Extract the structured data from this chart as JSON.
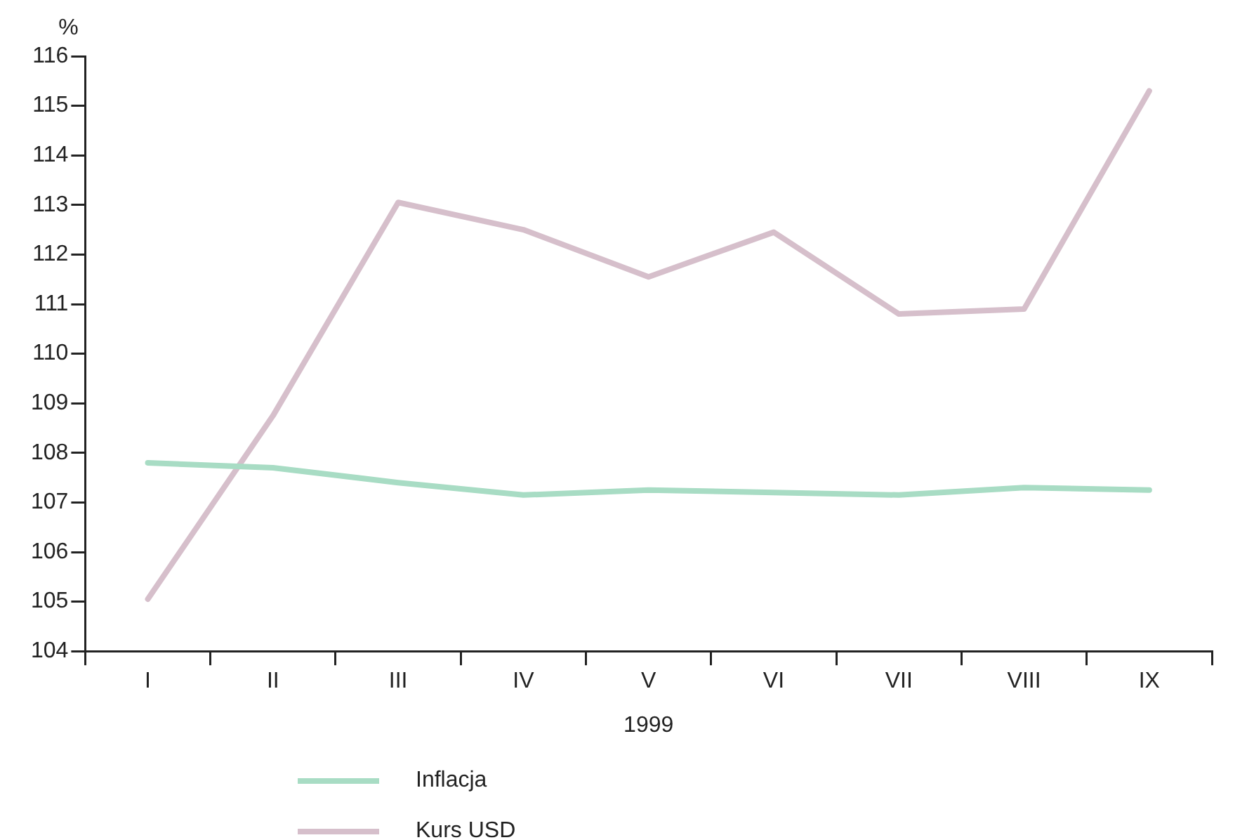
{
  "chart_data": {
    "type": "line",
    "xlabel": "1999",
    "ylabel": "%",
    "categories": [
      "I",
      "II",
      "III",
      "IV",
      "V",
      "VI",
      "VII",
      "VIII",
      "IX"
    ],
    "series": [
      {
        "name": "Inflacja",
        "color": "#a8dcc4",
        "values": [
          107.8,
          107.7,
          107.4,
          107.15,
          107.25,
          107.2,
          107.15,
          107.3,
          107.25
        ]
      },
      {
        "name": "Kurs USD",
        "color": "#d6bfcb",
        "values": [
          105.05,
          108.75,
          113.05,
          112.5,
          111.55,
          112.45,
          110.8,
          110.9,
          115.3
        ]
      }
    ],
    "ylim": [
      104,
      116
    ],
    "yticks": [
      104,
      105,
      106,
      107,
      108,
      109,
      110,
      111,
      112,
      113,
      114,
      115,
      116
    ],
    "grid": false,
    "legend": "bottom",
    "marker": "none",
    "line_style": "solid"
  }
}
